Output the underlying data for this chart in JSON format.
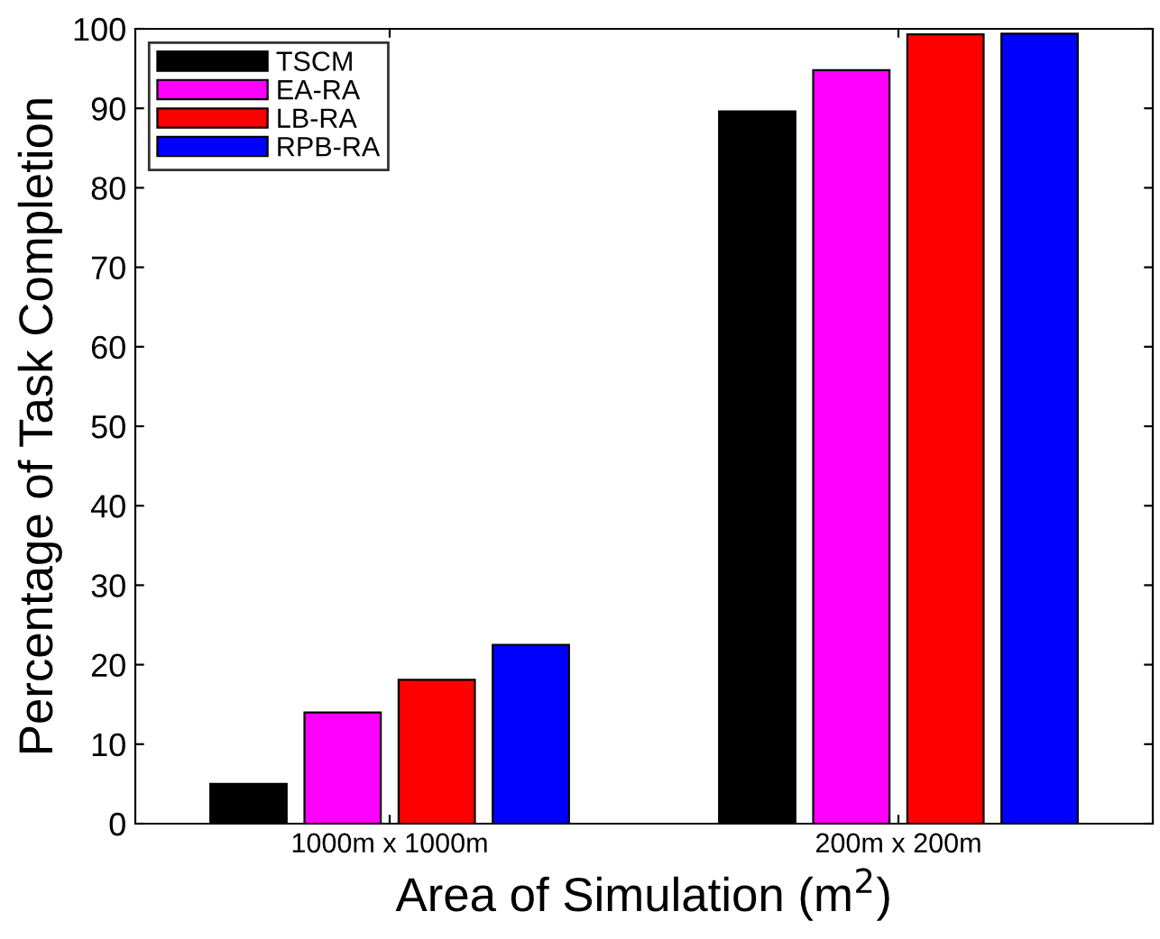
{
  "chart_data": {
    "type": "bar",
    "categories": [
      "1000m x 1000m",
      "200m x 200m"
    ],
    "series": [
      {
        "name": "TSCM",
        "color": "#000000",
        "values": [
          5,
          89.6
        ]
      },
      {
        "name": "EA-RA",
        "color": "#ff00ff",
        "values": [
          14,
          94.8
        ]
      },
      {
        "name": "LB-RA",
        "color": "#ff0000",
        "values": [
          18.1,
          99.3
        ]
      },
      {
        "name": "RPB-RA",
        "color": "#0000ff",
        "values": [
          22.5,
          99.4
        ]
      }
    ],
    "xlabel": "Area of Simulation (m$^{2}$)",
    "ylabel": "Percentage of Task Completion",
    "ylim": [
      0,
      100
    ],
    "yticks": [
      0,
      10,
      20,
      30,
      40,
      50,
      60,
      70,
      80,
      90,
      100
    ],
    "grid": false,
    "legend": "top left"
  }
}
